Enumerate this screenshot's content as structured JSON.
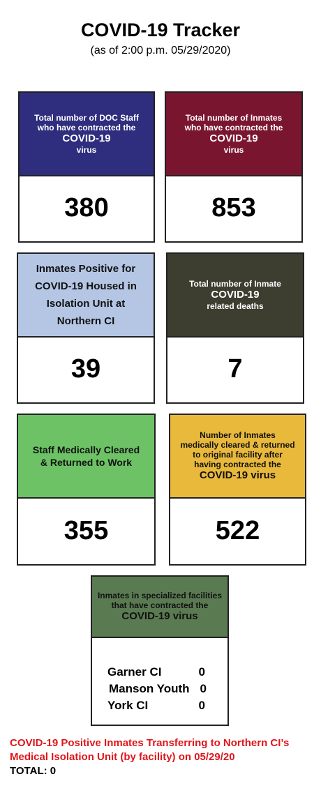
{
  "header": {
    "title": "COVID-19 Tracker",
    "subtitle": "(as of 2:00 p.m. 05/29/2020)"
  },
  "cards": [
    {
      "lines": [
        "Total number of DOC Staff",
        "who have contracted the",
        "COVID-19",
        "virus"
      ],
      "value": 380
    },
    {
      "lines": [
        "Total number of Inmates",
        "who have contracted the",
        "COVID-19",
        "virus"
      ],
      "value": 853
    },
    {
      "lines": [
        "Inmates Positive for",
        "COVID-19 Housed in",
        "Isolation Unit at",
        "Northern CI"
      ],
      "value": 39
    },
    {
      "lines": [
        "Total number of Inmate",
        "COVID-19",
        "related deaths"
      ],
      "value": 7
    },
    {
      "lines": [
        "Staff Medically Cleared",
        "& Returned to Work"
      ],
      "value": 355
    },
    {
      "lines": [
        "Number of Inmates",
        "medically cleared & returned",
        "to original facility after",
        "having contracted the",
        "COVID-19 virus"
      ],
      "value": 522
    }
  ],
  "facilities_card": {
    "lines": [
      "Inmates in specialized facilities",
      "that have contracted the",
      "COVID-19 virus"
    ],
    "rows": [
      [
        "Garner CI",
        0
      ],
      [
        "Manson Youth",
        0
      ],
      [
        "York CI",
        0
      ]
    ]
  },
  "footer": {
    "lines": [
      "COVID-19 Positive Inmates Transferring to Northern CI’s",
      "Medical Isolation Unit (by facility) on 05/29/20"
    ],
    "total": "TOTAL: 0"
  }
}
